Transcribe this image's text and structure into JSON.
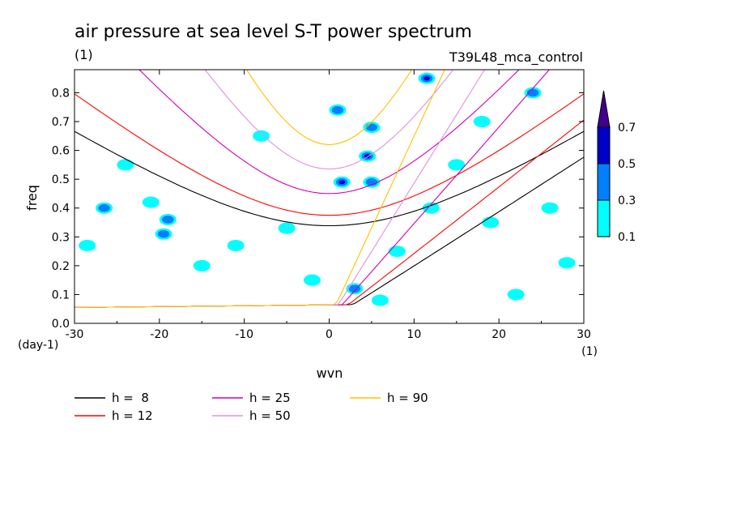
{
  "chart_data": {
    "type": "line",
    "title": "air pressure at sea level S-T power spectrum",
    "subtitle_left": "(1)",
    "subtitle_right": "T39L48_mca_control",
    "xlabel": "wvn",
    "ylabel": "freq",
    "x_unit": "(1)",
    "y_unit": "(day-1)",
    "xlim": [
      -30,
      30
    ],
    "ylim": [
      0,
      0.88
    ],
    "x_ticks": [
      -30,
      -20,
      -10,
      0,
      10,
      20,
      30
    ],
    "x_tick_labels": [
      "-30",
      "-20",
      "-10",
      "0",
      "10",
      "20",
      "30"
    ],
    "y_ticks": [
      0,
      0.1,
      0.2,
      0.3,
      0.4,
      0.5,
      0.6,
      0.7,
      0.8
    ],
    "y_tick_labels": [
      "0.0",
      "0.1",
      "0.2",
      "0.3",
      "0.4",
      "0.5",
      "0.6",
      "0.7",
      "0.8"
    ],
    "colorbar": {
      "levels": [
        0.1,
        0.3,
        0.5,
        0.7
      ],
      "level_labels": [
        "0.1",
        "0.3",
        "0.5",
        "0.7"
      ],
      "colors": [
        "#00ffff",
        "#0080ff",
        "#0000c8",
        "#400090"
      ]
    },
    "contour_blobs": [
      {
        "x": -26.5,
        "y": 0.4,
        "level": 2
      },
      {
        "x": -19.5,
        "y": 0.31,
        "level": 2
      },
      {
        "x": -19.0,
        "y": 0.36,
        "level": 2
      },
      {
        "x": 1.5,
        "y": 0.49,
        "level": 3
      },
      {
        "x": 1.0,
        "y": 0.74,
        "level": 2
      },
      {
        "x": 4.5,
        "y": 0.58,
        "level": 3
      },
      {
        "x": 5.0,
        "y": 0.68,
        "level": 2
      },
      {
        "x": 5.0,
        "y": 0.49,
        "level": 2
      },
      {
        "x": 11.5,
        "y": 0.85,
        "level": 3
      },
      {
        "x": 24.0,
        "y": 0.8,
        "level": 2
      },
      {
        "x": 3.0,
        "y": 0.12,
        "level": 2
      },
      {
        "x": 6.0,
        "y": 0.08,
        "level": 1
      },
      {
        "x": -28.5,
        "y": 0.27,
        "level": 1
      },
      {
        "x": -21.0,
        "y": 0.42,
        "level": 1
      },
      {
        "x": -15.0,
        "y": 0.2,
        "level": 1
      },
      {
        "x": -11.0,
        "y": 0.27,
        "level": 1
      },
      {
        "x": -5.0,
        "y": 0.33,
        "level": 1
      },
      {
        "x": 15.0,
        "y": 0.55,
        "level": 1
      },
      {
        "x": 19.0,
        "y": 0.35,
        "level": 1
      },
      {
        "x": 26.0,
        "y": 0.4,
        "level": 1
      },
      {
        "x": 28.0,
        "y": 0.21,
        "level": 1
      },
      {
        "x": -8.0,
        "y": 0.65,
        "level": 1
      },
      {
        "x": 18.0,
        "y": 0.7,
        "level": 1
      },
      {
        "x": -24.0,
        "y": 0.55,
        "level": 1
      },
      {
        "x": 8.0,
        "y": 0.25,
        "level": 1
      },
      {
        "x": 22.0,
        "y": 0.1,
        "level": 1
      },
      {
        "x": -2.0,
        "y": 0.15,
        "level": 1
      },
      {
        "x": 12.0,
        "y": 0.4,
        "level": 1
      }
    ],
    "series": [
      {
        "name": "h =  8",
        "h": 8,
        "color": "#000000"
      },
      {
        "name": "h = 12",
        "h": 12,
        "color": "#ff0000"
      },
      {
        "name": "h = 25",
        "h": 25,
        "color": "#d000b0"
      },
      {
        "name": "h = 50",
        "h": 50,
        "color": "#e090e0"
      },
      {
        "name": "h = 90",
        "h": 90,
        "color": "#ffc000"
      }
    ]
  }
}
